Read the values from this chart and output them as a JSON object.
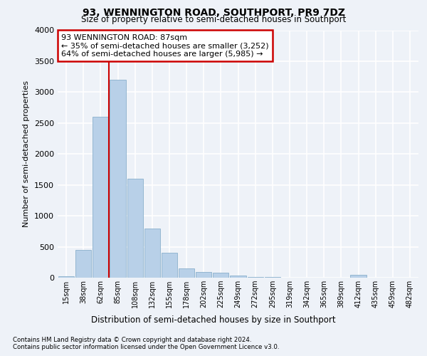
{
  "title1": "93, WENNINGTON ROAD, SOUTHPORT, PR9 7DZ",
  "title2": "Size of property relative to semi-detached houses in Southport",
  "xlabel": "Distribution of semi-detached houses by size in Southport",
  "ylabel": "Number of semi-detached properties",
  "footer1": "Contains HM Land Registry data © Crown copyright and database right 2024.",
  "footer2": "Contains public sector information licensed under the Open Government Licence v3.0.",
  "categories": [
    "15sqm",
    "38sqm",
    "62sqm",
    "85sqm",
    "108sqm",
    "132sqm",
    "155sqm",
    "178sqm",
    "202sqm",
    "225sqm",
    "249sqm",
    "272sqm",
    "295sqm",
    "319sqm",
    "342sqm",
    "365sqm",
    "389sqm",
    "412sqm",
    "435sqm",
    "459sqm",
    "482sqm"
  ],
  "values": [
    20,
    450,
    2600,
    3200,
    1600,
    800,
    400,
    150,
    90,
    85,
    30,
    15,
    10,
    5,
    5,
    5,
    0,
    50,
    0,
    0,
    0
  ],
  "bar_color": "#b8d0e8",
  "bar_edge_color": "#8ab0cc",
  "ylim": [
    0,
    4000
  ],
  "yticks": [
    0,
    500,
    1000,
    1500,
    2000,
    2500,
    3000,
    3500,
    4000
  ],
  "property_bin_index": 3,
  "property_label": "93 WENNINGTON ROAD: 87sqm",
  "pct_smaller": 35,
  "count_smaller": 3252,
  "pct_larger": 64,
  "count_larger": 5985,
  "annotation_box_color": "#ffffff",
  "annotation_border_color": "#cc0000",
  "vline_color": "#cc0000",
  "bg_color": "#eef2f8",
  "grid_color": "#ffffff"
}
